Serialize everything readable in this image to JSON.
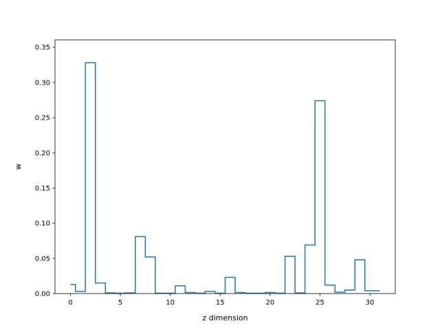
{
  "chart_data": {
    "type": "step",
    "title": "",
    "xlabel": "z dimension",
    "ylabel": "w",
    "xlim": [
      -1.55,
      32.55
    ],
    "ylim": [
      0,
      0.3605
    ],
    "xticks": [
      0,
      5,
      10,
      15,
      20,
      25,
      30
    ],
    "xtick_labels": [
      "0",
      "5",
      "10",
      "15",
      "20",
      "25",
      "30"
    ],
    "yticks": [
      0.0,
      0.05,
      0.1,
      0.15,
      0.2,
      0.25,
      0.3,
      0.35
    ],
    "ytick_labels": [
      "0.00",
      "0.05",
      "0.10",
      "0.15",
      "0.20",
      "0.25",
      "0.30",
      "0.35"
    ],
    "grid": false,
    "step_where": "mid",
    "line_color": "#1f77b4",
    "x": [
      0,
      1,
      2,
      3,
      4,
      5,
      6,
      7,
      8,
      9,
      10,
      11,
      12,
      13,
      14,
      15,
      16,
      17,
      18,
      19,
      20,
      21,
      22,
      23,
      24,
      25,
      26,
      27,
      28,
      29,
      30,
      31
    ],
    "values": [
      0.013,
      0.003,
      0.328,
      0.015,
      0.001,
      0.0005,
      0.001,
      0.081,
      0.052,
      0.0005,
      0.0005,
      0.011,
      0.0015,
      0.0005,
      0.003,
      0.0005,
      0.023,
      0.0015,
      0.0005,
      0.0005,
      0.0015,
      0.0005,
      0.053,
      0.001,
      0.069,
      0.274,
      0.012,
      0.002,
      0.005,
      0.048,
      0.004,
      0.004
    ]
  }
}
